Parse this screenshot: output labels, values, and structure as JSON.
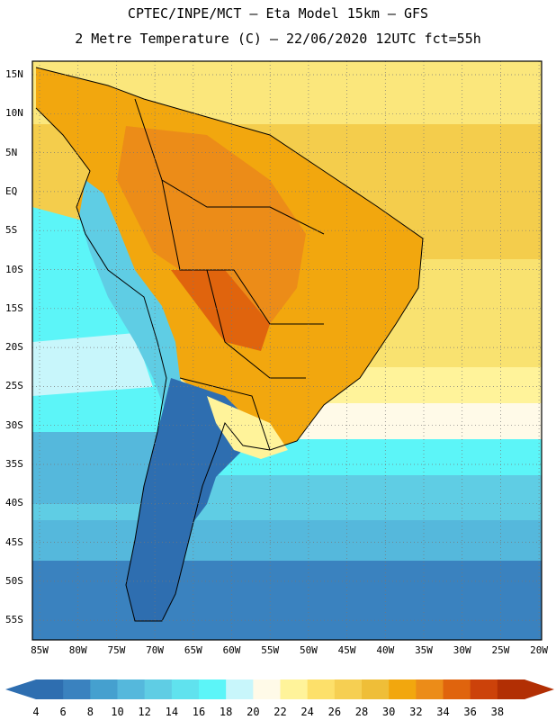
{
  "header": {
    "line1": "CPTEC/INPE/MCT –  Eta Model 15km – GFS",
    "line2": "2 Metre Temperature (C) – 22/06/2020 12UTC fct=55h"
  },
  "map": {
    "lat_labels": [
      "15N",
      "10N",
      "5N",
      "EQ",
      "5S",
      "10S",
      "15S",
      "20S",
      "25S",
      "30S",
      "35S",
      "40S",
      "45S",
      "50S",
      "55S"
    ],
    "lon_labels": [
      "85W",
      "80W",
      "75W",
      "70W",
      "65W",
      "60W",
      "55W",
      "50W",
      "45W",
      "40W",
      "35W",
      "30W",
      "25W",
      "20W"
    ]
  },
  "colorbar": {
    "labels": [
      "4",
      "6",
      "8",
      "10",
      "12",
      "14",
      "16",
      "18",
      "20",
      "22",
      "24",
      "26",
      "28",
      "30",
      "32",
      "34",
      "36",
      "38"
    ],
    "colors": [
      "#2e6eb0",
      "#3a82bf",
      "#45a0cf",
      "#55b8dc",
      "#5fcde4",
      "#60e2ee",
      "#5cf5f8",
      "#c8f6fb",
      "#fffae8",
      "#fff39a",
      "#fde06a",
      "#f6cf52",
      "#efbe38",
      "#f2a70e",
      "#ec8c18",
      "#e0640d",
      "#cc420a",
      "#b22f04"
    ],
    "low_color": "#2e6eb0",
    "high_color": "#b22f04"
  }
}
